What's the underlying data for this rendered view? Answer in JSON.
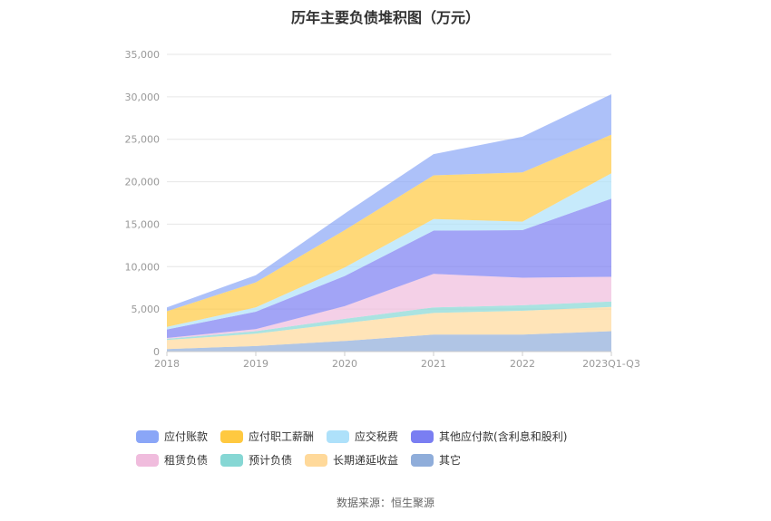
{
  "title": "历年主要负债堆积图（万元）",
  "source": "数据来源：恒生聚源",
  "chart_data": {
    "type": "area",
    "stacked": true,
    "title": "历年主要负债堆积图（万元）",
    "categories": [
      "2018",
      "2019",
      "2020",
      "2021",
      "2022",
      "2023Q1-Q3"
    ],
    "ylim": [
      0,
      35000
    ],
    "yticks": [
      0,
      5000,
      10000,
      15000,
      20000,
      25000,
      30000,
      35000
    ],
    "ytick_labels": [
      "0",
      "5,000",
      "10,000",
      "15,000",
      "20,000",
      "25,000",
      "30,000",
      "35,000"
    ],
    "grid": true,
    "legend_position": "bottom",
    "series": [
      {
        "name": "其它",
        "color": "#8fadda",
        "values": [
          300,
          650,
          1250,
          2000,
          2000,
          2400
        ]
      },
      {
        "name": "长期递延收益",
        "color": "#ffd99a",
        "values": [
          1050,
          1450,
          2100,
          2550,
          2800,
          2850
        ]
      },
      {
        "name": "预计负债",
        "color": "#86d7d4",
        "values": [
          150,
          300,
          500,
          650,
          650,
          650
        ]
      },
      {
        "name": "租赁负债",
        "color": "#f0bcdd",
        "values": [
          100,
          250,
          1500,
          3950,
          3250,
          2900
        ]
      },
      {
        "name": "其他应付款(含利息和股利)",
        "color": "#7a7ef2",
        "values": [
          1000,
          2050,
          3550,
          5100,
          5600,
          9200
        ]
      },
      {
        "name": "应交税费",
        "color": "#aee1fa",
        "values": [
          300,
          500,
          1000,
          1350,
          1000,
          3000
        ]
      },
      {
        "name": "应付职工薪酬",
        "color": "#ffc940",
        "values": [
          1850,
          2950,
          4400,
          5150,
          5800,
          4550
        ]
      },
      {
        "name": "应付账款",
        "color": "#8aa6f7",
        "values": [
          450,
          850,
          1950,
          2500,
          4200,
          4750
        ]
      }
    ]
  },
  "legend": [
    {
      "label": "应付账款",
      "color": "#8aa6f7"
    },
    {
      "label": "应付职工薪酬",
      "color": "#ffc940"
    },
    {
      "label": "应交税费",
      "color": "#aee1fa"
    },
    {
      "label": "其他应付款(含利息和股利)",
      "color": "#7a7ef2"
    },
    {
      "label": "租赁负债",
      "color": "#f0bcdd"
    },
    {
      "label": "预计负债",
      "color": "#86d7d4"
    },
    {
      "label": "长期递延收益",
      "color": "#ffd99a"
    },
    {
      "label": "其它",
      "color": "#8fadda"
    }
  ]
}
